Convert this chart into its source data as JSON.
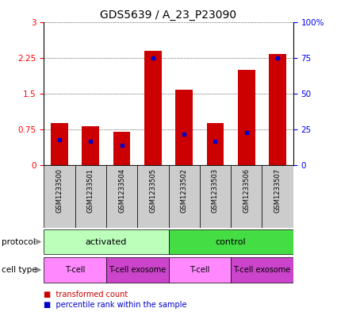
{
  "title": "GDS5639 / A_23_P23090",
  "samples": [
    "GSM1233500",
    "GSM1233501",
    "GSM1233504",
    "GSM1233505",
    "GSM1233502",
    "GSM1233503",
    "GSM1233506",
    "GSM1233507"
  ],
  "transformed_counts": [
    0.88,
    0.82,
    0.7,
    2.4,
    1.58,
    0.88,
    2.0,
    2.32
  ],
  "percentile_ranks": [
    0.18,
    0.17,
    0.14,
    0.75,
    0.22,
    0.17,
    0.23,
    0.75
  ],
  "bar_color": "#cc0000",
  "dot_color": "#0000cc",
  "ylim_left": [
    0,
    3
  ],
  "yticks_left": [
    0,
    0.75,
    1.5,
    2.25,
    3
  ],
  "yticks_right_pct": [
    0,
    25,
    50,
    75,
    100
  ],
  "protocol_groups": [
    {
      "label": "activated",
      "start": 0,
      "end": 4,
      "color": "#bbffbb"
    },
    {
      "label": "control",
      "start": 4,
      "end": 8,
      "color": "#44dd44"
    }
  ],
  "cell_type_groups": [
    {
      "label": "T-cell",
      "start": 0,
      "end": 2,
      "color": "#ff88ff"
    },
    {
      "label": "T-cell exosome",
      "start": 2,
      "end": 4,
      "color": "#cc44cc"
    },
    {
      "label": "T-cell",
      "start": 4,
      "end": 6,
      "color": "#ff88ff"
    },
    {
      "label": "T-cell exosome",
      "start": 6,
      "end": 8,
      "color": "#cc44cc"
    }
  ],
  "legend_items": [
    {
      "label": "transformed count",
      "color": "#cc0000"
    },
    {
      "label": "percentile rank within the sample",
      "color": "#0000cc"
    }
  ],
  "title_fontsize": 10,
  "tick_fontsize": 7.5,
  "label_fontsize": 8,
  "sample_box_color": "#cccccc"
}
